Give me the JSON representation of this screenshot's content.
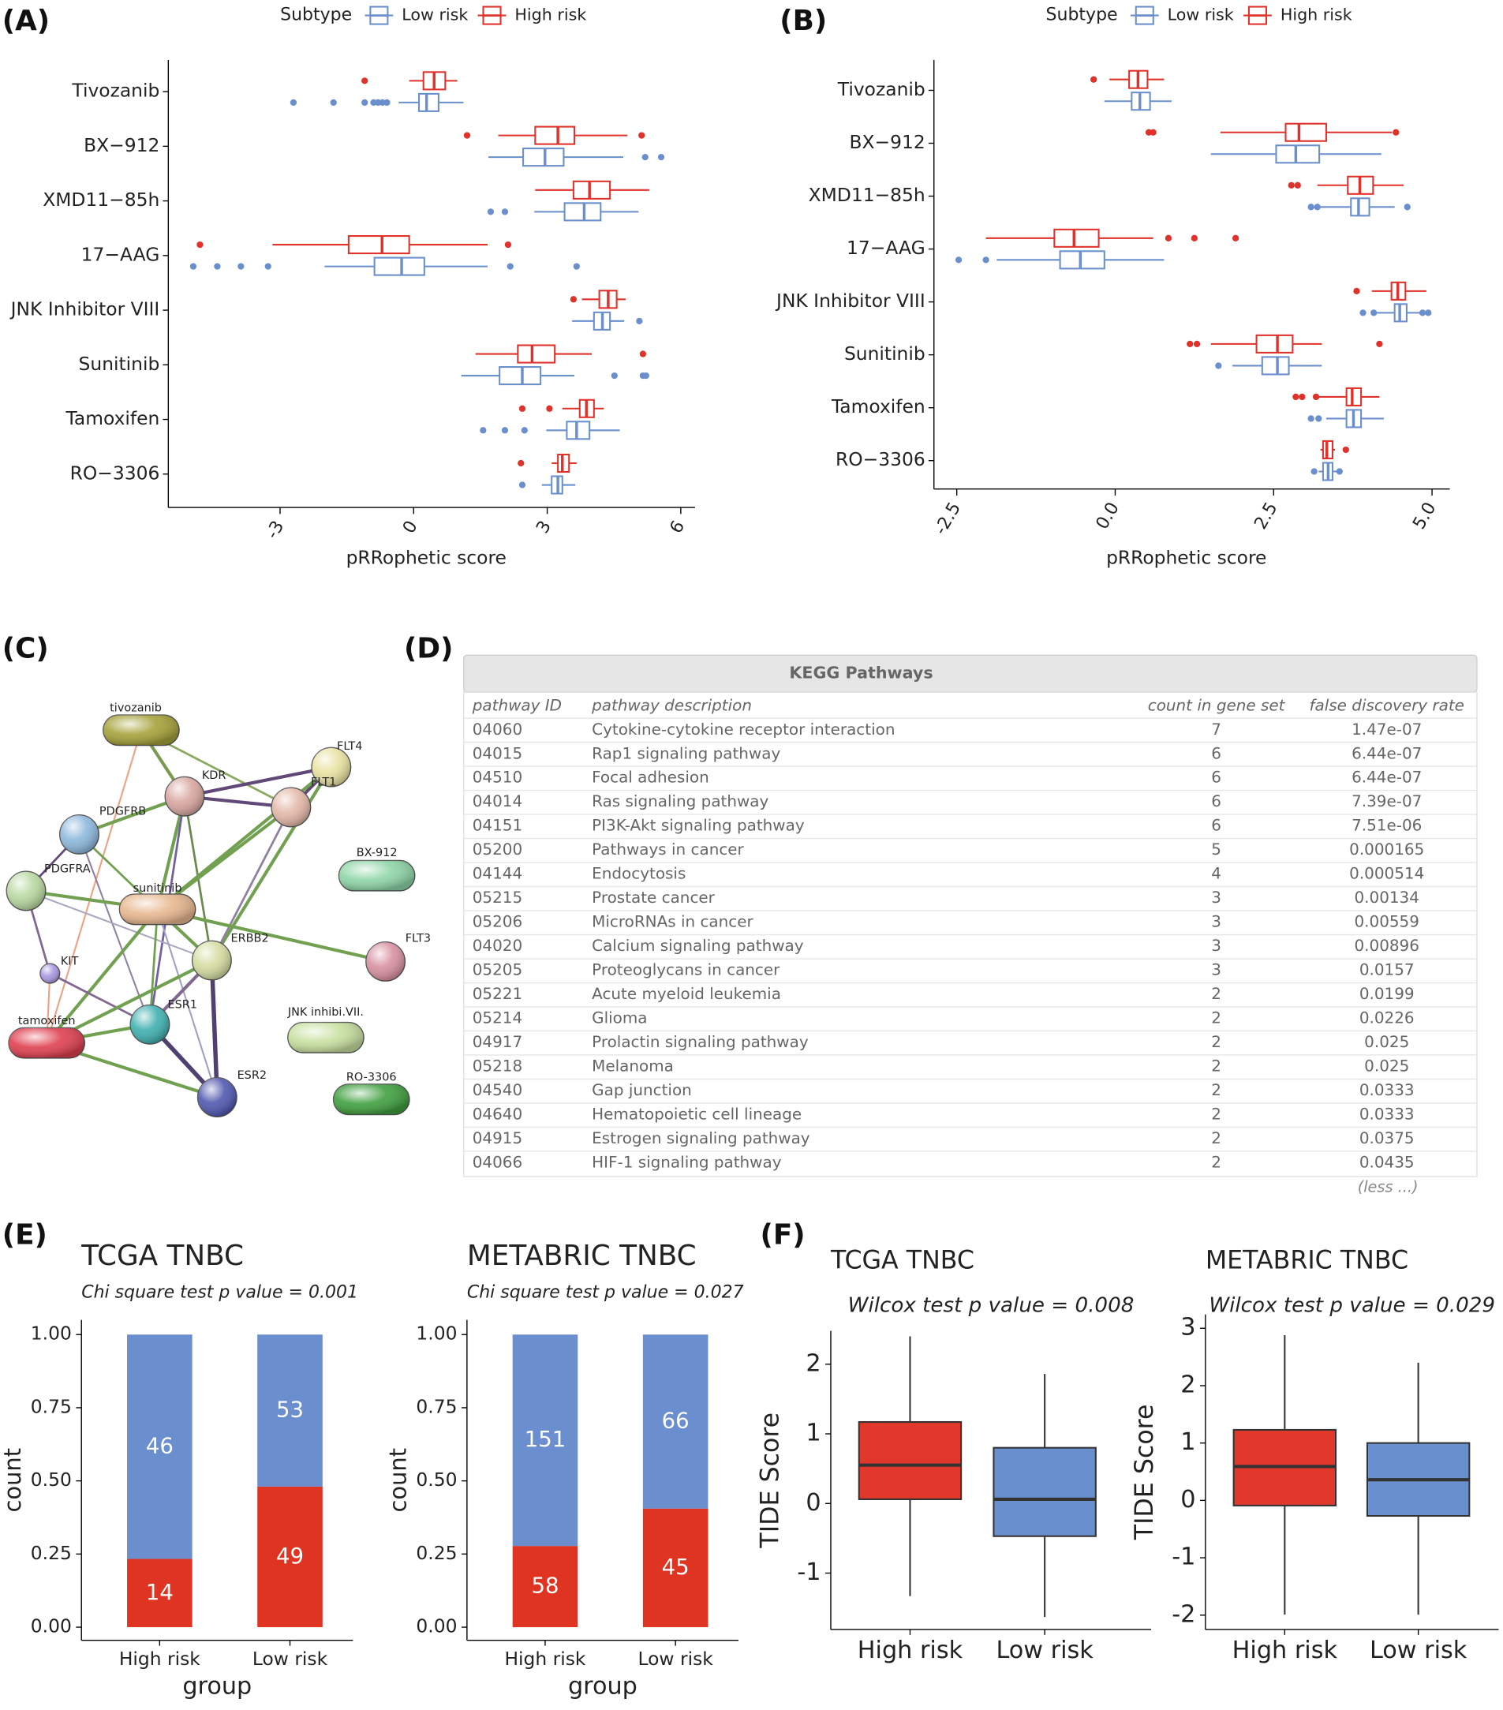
{
  "panels": [
    "(A)",
    "(B)",
    "(C)",
    "(D)",
    "(E)",
    "(F)"
  ],
  "chart_data": [
    {
      "type": "boxplot",
      "orientation": "horizontal",
      "x_label": "pRRophetic score",
      "legend_title": "Subtype",
      "legend": "top",
      "categories": [
        "Tivozanib",
        "BX−912",
        "XMD11−85h",
        "17−AAG",
        "JNK Inhibitor VIII",
        "Sunitinib",
        "Tamoxifen",
        "RO−3306"
      ],
      "xlim": [
        -5.51,
        6.32
      ],
      "xticks": [
        -3,
        0,
        3,
        6
      ],
      "series": [
        {
          "name": "Low risk",
          "color": "#6a8fcc",
          "boxes": [
            {
              "low": -0.34,
              "q1": 0.12,
              "median": 0.29,
              "q3": 0.56,
              "high": 1.12,
              "outliers": [
                -2.7,
                -1.8,
                -1.1,
                -0.9,
                -0.8,
                -0.7,
                -0.6
              ]
            },
            {
              "low": 1.68,
              "q1": 2.46,
              "median": 2.95,
              "q3": 3.37,
              "high": 4.71,
              "outliers": [
                5.2,
                5.56
              ]
            },
            {
              "low": 2.71,
              "q1": 3.39,
              "median": 3.83,
              "q3": 4.2,
              "high": 5.05,
              "outliers": [
                1.73,
                2.05
              ]
            },
            {
              "low": -2.0,
              "q1": -0.88,
              "median": -0.27,
              "q3": 0.24,
              "high": 1.66,
              "outliers": [
                -4.95,
                -4.41,
                -3.88,
                -3.27,
                2.17,
                3.66
              ]
            },
            {
              "low": 3.56,
              "q1": 4.05,
              "median": 4.24,
              "q3": 4.41,
              "high": 4.73,
              "outliers": [
                5.07
              ]
            },
            {
              "low": 1.07,
              "q1": 1.93,
              "median": 2.44,
              "q3": 2.85,
              "high": 3.61,
              "outliers": [
                4.51,
                5.15,
                5.22
              ]
            },
            {
              "low": 2.98,
              "q1": 3.44,
              "median": 3.66,
              "q3": 3.95,
              "high": 4.63,
              "outliers": [
                1.56,
                2.05,
                2.49
              ]
            },
            {
              "low": 2.88,
              "q1": 3.1,
              "median": 3.24,
              "q3": 3.34,
              "high": 3.63,
              "outliers": [
                2.44
              ]
            }
          ]
        },
        {
          "name": "High risk",
          "color": "#e0312a",
          "boxes": [
            {
              "low": -0.1,
              "q1": 0.22,
              "median": 0.46,
              "q3": 0.71,
              "high": 0.98,
              "outliers": [
                -1.1
              ]
            },
            {
              "low": 1.9,
              "q1": 2.73,
              "median": 3.24,
              "q3": 3.61,
              "high": 4.8,
              "outliers": [
                1.2,
                5.12
              ]
            },
            {
              "low": 2.73,
              "q1": 3.59,
              "median": 3.95,
              "q3": 4.41,
              "high": 5.29,
              "outliers": []
            },
            {
              "low": -3.17,
              "q1": -1.46,
              "median": -0.71,
              "q3": -0.1,
              "high": 1.66,
              "outliers": [
                -4.8,
                2.12
              ]
            },
            {
              "low": 3.78,
              "q1": 4.17,
              "median": 4.37,
              "q3": 4.56,
              "high": 4.76,
              "outliers": [
                3.59
              ]
            },
            {
              "low": 1.39,
              "q1": 2.34,
              "median": 2.66,
              "q3": 3.17,
              "high": 4.0,
              "outliers": [
                5.15
              ]
            },
            {
              "low": 3.34,
              "q1": 3.73,
              "median": 3.88,
              "q3": 4.05,
              "high": 4.27,
              "outliers": [
                2.44,
                3.05
              ]
            },
            {
              "low": 3.1,
              "q1": 3.24,
              "median": 3.34,
              "q3": 3.49,
              "high": 3.66,
              "outliers": [
                2.41
              ]
            }
          ]
        }
      ]
    },
    {
      "type": "boxplot",
      "orientation": "horizontal",
      "x_label": "pRRophetic score",
      "legend_title": "Subtype",
      "legend": "top",
      "categories": [
        "Tivozanib",
        "BX−912",
        "XMD11−85h",
        "17−AAG",
        "JNK Inhibitor VIII",
        "Sunitinib",
        "Tamoxifen",
        "RO−3306"
      ],
      "xlim": [
        -2.86,
        5.28
      ],
      "xticks": [
        -2.5,
        {
          "value": 0,
          "label": "0.0"
        },
        2.5,
        {
          "value": 5,
          "label": "5.0"
        }
      ],
      "series": [
        {
          "name": "Low risk",
          "color": "#6a8fcc",
          "boxes": [
            {
              "low": -0.17,
              "q1": 0.26,
              "median": 0.39,
              "q3": 0.55,
              "high": 0.89,
              "outliers": []
            },
            {
              "low": 1.51,
              "q1": 2.54,
              "median": 2.85,
              "q3": 3.22,
              "high": 4.2,
              "outliers": []
            },
            {
              "low": 3.22,
              "q1": 3.72,
              "median": 3.84,
              "q3": 4.01,
              "high": 4.41,
              "outliers": [
                3.09,
                3.19,
                4.61
              ]
            },
            {
              "low": -1.87,
              "q1": -0.87,
              "median": -0.55,
              "q3": -0.17,
              "high": 0.77,
              "outliers": [
                -2.47,
                -2.04
              ]
            },
            {
              "low": 4.13,
              "q1": 4.41,
              "median": 4.49,
              "q3": 4.6,
              "high": 4.92,
              "outliers": [
                3.91,
                4.08,
                4.85,
                4.94
              ]
            },
            {
              "low": 1.85,
              "q1": 2.32,
              "median": 2.56,
              "q3": 2.74,
              "high": 3.26,
              "outliers": [
                1.63
              ]
            },
            {
              "low": 3.33,
              "q1": 3.65,
              "median": 3.76,
              "q3": 3.88,
              "high": 4.24,
              "outliers": [
                3.09,
                3.21
              ]
            },
            {
              "low": 3.21,
              "q1": 3.28,
              "median": 3.36,
              "q3": 3.43,
              "high": 3.5,
              "outliers": [
                3.14,
                3.54
              ]
            }
          ]
        },
        {
          "name": "High risk",
          "color": "#e0312a",
          "boxes": [
            {
              "low": -0.09,
              "q1": 0.22,
              "median": 0.36,
              "q3": 0.51,
              "high": 0.77,
              "outliers": [
                -0.34
              ]
            },
            {
              "low": 1.66,
              "q1": 2.69,
              "median": 2.9,
              "q3": 3.33,
              "high": 4.37,
              "outliers": [
                0.53,
                0.6,
                4.43
              ]
            },
            {
              "low": 3.19,
              "q1": 3.67,
              "median": 3.86,
              "q3": 4.07,
              "high": 4.55,
              "outliers": [
                2.78,
                2.88
              ]
            },
            {
              "low": -2.04,
              "q1": -0.96,
              "median": -0.65,
              "q3": -0.26,
              "high": 0.6,
              "outliers": [
                0.84,
                1.25,
                1.9
              ]
            },
            {
              "low": 4.05,
              "q1": 4.36,
              "median": 4.46,
              "q3": 4.58,
              "high": 4.91,
              "outliers": [
                3.81
              ]
            },
            {
              "low": 1.51,
              "q1": 2.23,
              "median": 2.56,
              "q3": 2.8,
              "high": 3.26,
              "outliers": [
                1.18,
                1.29,
                4.17
              ]
            },
            {
              "low": 3.21,
              "q1": 3.65,
              "median": 3.74,
              "q3": 3.88,
              "high": 4.17,
              "outliers": [
                2.85,
                2.95,
                3.17
              ]
            },
            {
              "low": 3.24,
              "q1": 3.28,
              "median": 3.34,
              "q3": 3.43,
              "high": 3.47,
              "outliers": [
                3.64
              ]
            }
          ]
        }
      ]
    },
    {
      "type": "bar",
      "stacked": true,
      "position": "fill",
      "title": "TCGA TNBC",
      "subtitle": "Chi square test p value = 0.001",
      "y_label": "count",
      "x_label": "group",
      "categories": [
        "High risk",
        "Low risk"
      ],
      "ylim": [
        -0.045,
        1.05
      ],
      "yticks": [
        {
          "value": 0,
          "label": "0.00"
        },
        {
          "value": 0.25,
          "label": "0.25"
        },
        {
          "value": 0.5,
          "label": "0.50"
        },
        {
          "value": 0.75,
          "label": "0.75"
        },
        {
          "value": 1,
          "label": "1.00"
        }
      ],
      "series": [
        {
          "color": "#e03423",
          "values": [
            14,
            49
          ]
        },
        {
          "color": "#6b8ecf",
          "values": [
            46,
            53
          ]
        }
      ]
    },
    {
      "type": "bar",
      "stacked": true,
      "position": "fill",
      "title": "METABRIC TNBC",
      "subtitle": "Chi square test p value = 0.027",
      "y_label": "count",
      "x_label": "group",
      "categories": [
        "High risk",
        "Low risk"
      ],
      "ylim": [
        -0.045,
        1.05
      ],
      "yticks": [
        {
          "value": 0,
          "label": "0.00"
        },
        {
          "value": 0.25,
          "label": "0.25"
        },
        {
          "value": 0.5,
          "label": "0.50"
        },
        {
          "value": 0.75,
          "label": "0.75"
        },
        {
          "value": 1,
          "label": "1.00"
        }
      ],
      "series": [
        {
          "color": "#e03423",
          "values": [
            58,
            45
          ]
        },
        {
          "color": "#6b8ecf",
          "values": [
            151,
            66
          ]
        }
      ]
    },
    {
      "type": "boxplot",
      "orientation": "vertical",
      "title": "TCGA TNBC",
      "subtitle": "Wilcox test p value = 0.008",
      "y_label": "TIDE Score",
      "categories": [
        "High risk",
        "Low risk"
      ],
      "colors": [
        "#e0392b",
        "#6a8fcf"
      ],
      "ylim": [
        -1.81,
        2.48
      ],
      "yticks": [
        -1,
        0,
        1,
        2
      ],
      "boxes": [
        {
          "low": -1.33,
          "q1": 0.06,
          "median": 0.55,
          "q3": 1.17,
          "high": 2.4
        },
        {
          "low": -1.63,
          "q1": -0.47,
          "median": 0.06,
          "q3": 0.8,
          "high": 1.86
        }
      ]
    },
    {
      "type": "boxplot",
      "orientation": "vertical",
      "title": "METABRIC TNBC",
      "subtitle": "Wilcox test p value = 0.029",
      "y_label": "TIDE Score",
      "categories": [
        "High risk",
        "Low risk"
      ],
      "colors": [
        "#e0392b",
        "#6a8fcf"
      ],
      "ylim": [
        -2.25,
        3.24
      ],
      "yticks": [
        -2,
        -1,
        0,
        1,
        2,
        3
      ],
      "boxes": [
        {
          "low": -1.99,
          "q1": -0.09,
          "median": 0.59,
          "q3": 1.23,
          "high": 2.88
        },
        {
          "low": -1.99,
          "q1": -0.27,
          "median": 0.36,
          "q3": 1.0,
          "high": 2.4
        }
      ]
    }
  ],
  "network": {
    "nodes": [
      "tivozanib",
      "KDR",
      "FLT4",
      "FLT1",
      "PDGFRB",
      "PDGFRA",
      "sunitinib",
      "BX-912",
      "FLT3",
      "KIT",
      "ERBB2",
      "ESR1",
      "tamoxifen",
      "JNK inhibi.VII.",
      "ESR2",
      "RO-3306"
    ]
  },
  "table": {
    "title": "KEGG Pathways",
    "columns": [
      "pathway ID",
      "pathway description",
      "count in gene set",
      "false discovery rate"
    ],
    "rows": [
      [
        "04060",
        "Cytokine-cytokine receptor interaction",
        7,
        "1.47e-07"
      ],
      [
        "04015",
        "Rap1 signaling pathway",
        6,
        "6.44e-07"
      ],
      [
        "04510",
        "Focal adhesion",
        6,
        "6.44e-07"
      ],
      [
        "04014",
        "Ras signaling pathway",
        6,
        "7.39e-07"
      ],
      [
        "04151",
        "PI3K-Akt signaling pathway",
        6,
        "7.51e-06"
      ],
      [
        "05200",
        "Pathways in cancer",
        5,
        "0.000165"
      ],
      [
        "04144",
        "Endocytosis",
        4,
        "0.000514"
      ],
      [
        "05215",
        "Prostate cancer",
        3,
        "0.00134"
      ],
      [
        "05206",
        "MicroRNAs in cancer",
        3,
        "0.00559"
      ],
      [
        "04020",
        "Calcium signaling pathway",
        3,
        "0.00896"
      ],
      [
        "05205",
        "Proteoglycans in cancer",
        3,
        "0.0157"
      ],
      [
        "05221",
        "Acute myeloid leukemia",
        2,
        "0.0199"
      ],
      [
        "05214",
        "Glioma",
        2,
        "0.0226"
      ],
      [
        "04917",
        "Prolactin signaling pathway",
        2,
        "0.025"
      ],
      [
        "05218",
        "Melanoma",
        2,
        "0.025"
      ],
      [
        "04540",
        "Gap junction",
        2,
        "0.0333"
      ],
      [
        "04640",
        "Hematopoietic cell lineage",
        2,
        "0.0333"
      ],
      [
        "04915",
        "Estrogen signaling pathway",
        2,
        "0.0375"
      ],
      [
        "04066",
        "HIF-1 signaling pathway",
        2,
        "0.0435"
      ]
    ],
    "footer": "(less ...)"
  }
}
